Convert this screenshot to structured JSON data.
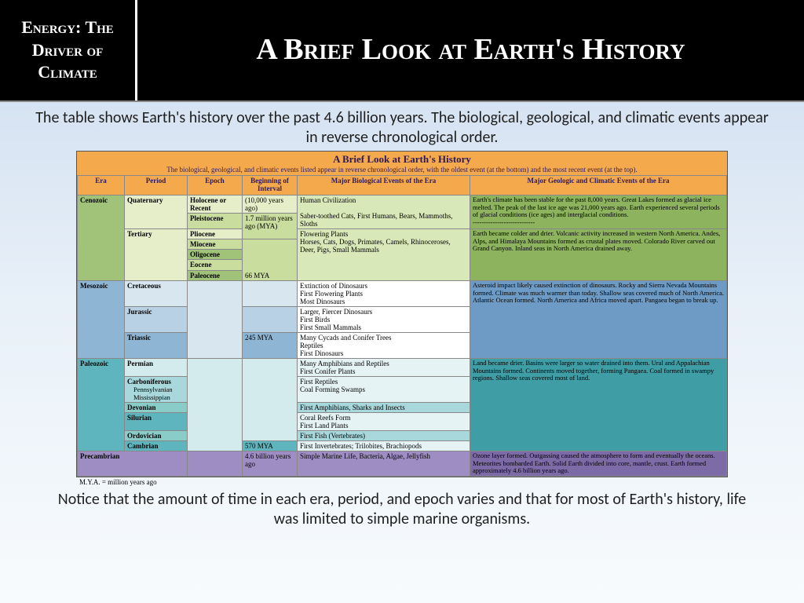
{
  "header": {
    "left": "Energy: The Driver of Climate",
    "right": "A Brief Look at Earth's History"
  },
  "intro": "The table shows Earth's history over the past 4.6 billion years. The biological, geological, and climatic events appear in reverse chronological order.",
  "outro": "Notice that the amount of time in each era, period, and epoch varies and that for most of Earth's history, life was limited to simple marine organisms.",
  "table": {
    "title": "A Brief Look at Earth's History",
    "subtitle": "The biological, geological, and climatic events listed appear in reverse chronological order, with the oldest event (at the bottom) and the most recent event (at the top).",
    "columns": [
      "Era",
      "Period",
      "Epoch",
      "Beginning of Interval",
      "Major Biological Events of the Era",
      "Major Geologic and Climatic Events of the Era"
    ],
    "col_widths": [
      "60px",
      "80px",
      "70px",
      "70px",
      "220px",
      "auto"
    ],
    "footnote": "M.Y.A. = million years ago",
    "colors": {
      "header_bg": "#f5a94d",
      "cenozoic_era": "#a0c379",
      "cenozoic_light": "#e6eec9",
      "cenozoic_med": "#c9dd9e",
      "cenozoic_bio": "#d9e8b9",
      "cenozoic_geo": "#8db35f",
      "mesozoic_era": "#8fb5d5",
      "mesozoic_light": "#d8e6f0",
      "mesozoic_med": "#b8d1e5",
      "mesozoic_bio": "#ffffff",
      "mesozoic_geo": "#6d9bc5",
      "paleozoic_era": "#5fb5bd",
      "paleozoic_light": "#d3ebed",
      "paleozoic_med": "#a8d8dc",
      "paleozoic_med2": "#8accc8",
      "paleozoic_bio": "#e6f3f4",
      "paleozoic_geo": "#3f9da5",
      "precambrian": "#9e8dc3",
      "precambrian_geo": "#7d6ba8"
    },
    "cenozoic": {
      "era": "Cenozoic",
      "quaternary": "Quaternary",
      "holocene": "Holocene or Recent",
      "holocene_begin": "(10,000 years ago)",
      "pleistocene": "Pleistocene",
      "pleistocene_begin": "1.7 million years ago (MYA)",
      "tertiary": "Tertiary",
      "pliocene": "Pliocene",
      "miocene": "Miocene",
      "oligocene": "Oligocene",
      "eocene": "Eocene",
      "paleocene": "Paleocene",
      "tertiary_begin": "66 MYA",
      "bio1": "Human Civilization",
      "bio2": "Saber-toothed Cats, First Humans, Bears, Mammoths, Sloths",
      "bio3": "Flowering Plants\nHorses, Cats, Dogs, Primates, Camels, Rhinoceroses, Deer, Pigs, Small Mammals",
      "geo1": "Earth's climate has been stable for the past 8,000 years. Great Lakes formed as glacial ice melted. The peak of the last ice age was 21,000 years ago. Earth experienced several periods of glacial conditions (ice ages) and interglacial conditions.",
      "geo2": "Earth became colder and drier. Volcanic activity increased in western North America. Andes, Alps, and Himalaya Mountains formed as crustal plates moved. Colorado River carved out Grand Canyon. Inland seas in North America drained away."
    },
    "mesozoic": {
      "era": "Mesozoic",
      "cretaceous": "Cretaceous",
      "jurassic": "Jurassic",
      "triassic": "Triassic",
      "begin": "245 MYA",
      "bio1": "Extinction of Dinosaurs\nFirst Flowering Plants\nMost Dinosaurs",
      "bio2": "Larger, Fiercer Dinosaurs\nFirst Birds\nFirst Small Mammals",
      "bio3": "Many Cycads and Conifer Trees\nReptiles\nFirst Dinosaurs",
      "geo": "Asteroid impact likely caused extinction of dinosaurs. Rocky and Sierra Nevada Mountains formed. Climate was much warmer than today. Shallow seas covered much of North America. Atlantic Ocean formed. North America and Africa moved apart. Pangaea began to break up."
    },
    "paleozoic": {
      "era": "Paleozoic",
      "permian": "Permian",
      "carboniferous": "Carboniferous",
      "penn": "Pennsylvanian",
      "miss": "Mississippian",
      "devonian": "Devonian",
      "silurian": "Silurian",
      "ordovician": "Ordovician",
      "cambrian": "Cambrian",
      "begin": "570 MYA",
      "bio1": "Many Amphibians and Reptiles\nFirst Conifer Plants",
      "bio2": "First Reptiles\nCoal Forming Swamps",
      "bio3": "First Amphibians, Sharks and Insects",
      "bio4": "Coral Reefs Form\nFirst Land Plants",
      "bio5": "First Fish (Vertebrates)",
      "bio6": "First Invertebrates; Trilobites, Brachiopods",
      "geo": "Land became drier. Basins were larger so water drained into them. Ural and Appalachian Mountains formed. Continents moved together, forming Pangaea. Coal formed in swampy regions. Shallow seas covered most of land."
    },
    "precambrian": {
      "era": "Precambrian",
      "begin": "4.6 billion years ago",
      "bio": "Simple Marine Life, Bacteria, Algae, Jellyfish",
      "geo": "Ozone layer formed. Outgassing caused the atmosphere to form and eventually the oceans. Meteorites bombarded Earth. Solid Earth divided into core, mantle, crust. Earth formed approximately 4.6 billion years ago."
    }
  }
}
